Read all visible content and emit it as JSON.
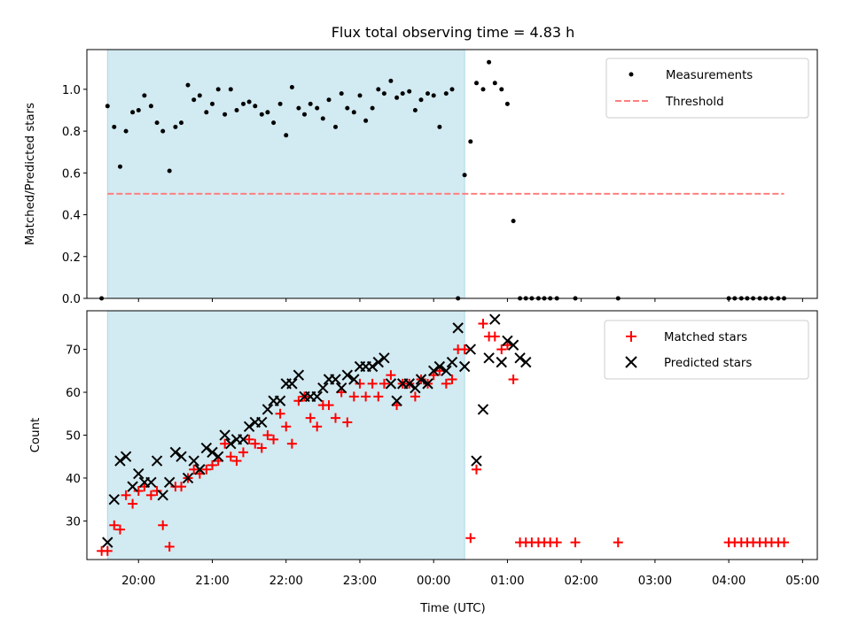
{
  "chart_data": {
    "title": "Flux total observing time = 4.83 h",
    "xlabel": "Time (UTC)",
    "x_ticks": [
      "20:00",
      "21:00",
      "22:00",
      "23:00",
      "00:00",
      "01:00",
      "02:00",
      "03:00",
      "04:00",
      "05:00"
    ],
    "x_tick_hours": [
      20,
      21,
      22,
      23,
      24,
      25,
      26,
      27,
      28,
      29
    ],
    "xlim_hours": [
      19.3,
      29.2
    ],
    "observing_window_hours": [
      19.58,
      24.42
    ],
    "colors": {
      "window": "#add8e6",
      "measurements": "#000000",
      "threshold": "#ff7f7f",
      "matched": "#ff0000",
      "predicted": "#000000"
    },
    "panels": [
      {
        "type": "scatter",
        "ylabel": "Matched/Predicted stars",
        "ylim": [
          0,
          1.19
        ],
        "y_ticks": [
          0.0,
          0.2,
          0.4,
          0.6,
          0.8,
          1.0
        ],
        "y_tick_labels": [
          "0.0",
          "0.2",
          "0.4",
          "0.6",
          "0.8",
          "1.0"
        ],
        "legend_position": "upper right",
        "series": [
          {
            "name": "Measurements",
            "marker": "dot",
            "x": [
              19.5,
              19.58,
              19.67,
              19.75,
              19.83,
              19.92,
              20.0,
              20.08,
              20.17,
              20.25,
              20.33,
              20.42,
              20.5,
              20.58,
              20.67,
              20.75,
              20.83,
              20.92,
              21.0,
              21.08,
              21.17,
              21.25,
              21.33,
              21.42,
              21.5,
              21.58,
              21.67,
              21.75,
              21.83,
              21.92,
              22.0,
              22.08,
              22.17,
              22.25,
              22.33,
              22.42,
              22.5,
              22.58,
              22.67,
              22.75,
              22.83,
              22.92,
              23.0,
              23.08,
              23.17,
              23.25,
              23.33,
              23.42,
              23.5,
              23.58,
              23.67,
              23.75,
              23.83,
              23.92,
              24.0,
              24.08,
              24.17,
              24.25,
              24.33,
              24.42,
              24.5,
              24.58,
              24.67,
              24.75,
              24.83,
              24.92,
              25.0,
              25.08,
              25.17,
              25.25,
              25.33,
              25.42,
              25.5,
              25.58,
              25.67,
              25.92,
              26.5,
              28.0,
              28.08,
              28.17,
              28.25,
              28.33,
              28.42,
              28.5,
              28.58,
              28.67,
              28.75
            ],
            "y": [
              0.0,
              0.92,
              0.82,
              0.63,
              0.8,
              0.89,
              0.9,
              0.97,
              0.92,
              0.84,
              0.8,
              0.61,
              0.82,
              0.84,
              1.02,
              0.95,
              0.97,
              0.89,
              0.93,
              1.0,
              0.88,
              1.0,
              0.9,
              0.93,
              0.94,
              0.92,
              0.88,
              0.89,
              0.84,
              0.93,
              0.78,
              1.01,
              0.91,
              0.88,
              0.93,
              0.91,
              0.86,
              0.95,
              0.82,
              0.98,
              0.91,
              0.89,
              0.97,
              0.85,
              0.91,
              1.0,
              0.98,
              1.04,
              0.96,
              0.98,
              0.99,
              0.9,
              0.95,
              0.98,
              0.97,
              0.82,
              0.98,
              1.0,
              0.0,
              0.59,
              0.75,
              1.03,
              1.0,
              1.13,
              1.03,
              1.0,
              0.93,
              0.37,
              0.0,
              0.0,
              0.0,
              0.0,
              0.0,
              0.0,
              0.0,
              0.0,
              0.0,
              0.0,
              0.0,
              0.0,
              0.0,
              0.0,
              0.0,
              0.0,
              0.0,
              0.0,
              0.0
            ]
          },
          {
            "name": "Threshold",
            "marker": "dashed-line",
            "x": [
              19.58,
              28.75
            ],
            "y": [
              0.5,
              0.5
            ]
          }
        ]
      },
      {
        "type": "scatter",
        "ylabel": "Count",
        "ylim": [
          21,
          79
        ],
        "y_ticks": [
          30,
          40,
          50,
          60,
          70
        ],
        "y_tick_labels": [
          "30",
          "40",
          "50",
          "60",
          "70"
        ],
        "legend_position": "upper right",
        "series": [
          {
            "name": "Matched stars",
            "marker": "plus",
            "x": [
              19.5,
              19.58,
              19.67,
              19.75,
              19.83,
              19.92,
              20.0,
              20.08,
              20.17,
              20.25,
              20.33,
              20.42,
              20.5,
              20.58,
              20.67,
              20.75,
              20.83,
              20.92,
              21.0,
              21.08,
              21.17,
              21.25,
              21.33,
              21.42,
              21.5,
              21.58,
              21.67,
              21.75,
              21.83,
              21.92,
              22.0,
              22.08,
              22.17,
              22.25,
              22.33,
              22.42,
              22.5,
              22.58,
              22.67,
              22.75,
              22.83,
              22.92,
              23.0,
              23.08,
              23.17,
              23.25,
              23.33,
              23.42,
              23.5,
              23.58,
              23.67,
              23.75,
              23.83,
              23.92,
              24.0,
              24.08,
              24.17,
              24.25,
              24.33,
              24.42,
              24.5,
              24.58,
              24.67,
              24.75,
              24.83,
              24.92,
              25.0,
              25.08,
              25.17,
              25.25,
              25.33,
              25.42,
              25.5,
              25.58,
              25.67,
              25.92,
              26.5,
              28.0,
              28.08,
              28.17,
              28.25,
              28.33,
              28.42,
              28.5,
              28.58,
              28.67,
              28.75
            ],
            "y": [
              23,
              23,
              29,
              28,
              36,
              34,
              37,
              38,
              36,
              37,
              29,
              24,
              38,
              38,
              40,
              42,
              41,
              42,
              43,
              44,
              48,
              45,
              44,
              46,
              49,
              48,
              47,
              50,
              49,
              55,
              52,
              48,
              58,
              59,
              54,
              52,
              57,
              57,
              54,
              60,
              53,
              59,
              62,
              59,
              62,
              59,
              62,
              64,
              57,
              62,
              62,
              59,
              63,
              62,
              64,
              65,
              62,
              63,
              70,
              70,
              26,
              42,
              76,
              73,
              73,
              70,
              71,
              63,
              25,
              25,
              25,
              25,
              25,
              25,
              25,
              25,
              25,
              25,
              25,
              25,
              25,
              25,
              25,
              25,
              25,
              25,
              25
            ]
          },
          {
            "name": "Predicted stars",
            "marker": "x",
            "x": [
              19.58,
              19.67,
              19.75,
              19.83,
              19.92,
              20.0,
              20.08,
              20.17,
              20.25,
              20.33,
              20.42,
              20.5,
              20.58,
              20.67,
              20.75,
              20.83,
              20.92,
              21.0,
              21.08,
              21.17,
              21.25,
              21.33,
              21.42,
              21.5,
              21.58,
              21.67,
              21.75,
              21.83,
              21.92,
              22.0,
              22.08,
              22.17,
              22.25,
              22.33,
              22.42,
              22.5,
              22.58,
              22.67,
              22.75,
              22.83,
              22.92,
              23.0,
              23.08,
              23.17,
              23.25,
              23.33,
              23.42,
              23.5,
              23.58,
              23.67,
              23.75,
              23.83,
              23.92,
              24.0,
              24.08,
              24.17,
              24.25,
              24.33,
              24.42,
              24.5,
              24.58,
              24.67,
              24.75,
              24.83,
              24.92,
              25.0,
              25.08,
              25.17,
              25.25
            ],
            "y": [
              25,
              35,
              44,
              45,
              38,
              41,
              39,
              39,
              44,
              36,
              39,
              46,
              45,
              40,
              44,
              42,
              47,
              46,
              45,
              50,
              48,
              49,
              49,
              52,
              53,
              53,
              56,
              58,
              58,
              62,
              62,
              64,
              59,
              59,
              59,
              61,
              63,
              63,
              61,
              64,
              63,
              66,
              66,
              66,
              67,
              68,
              62,
              58,
              62,
              62,
              61,
              63,
              62,
              65,
              66,
              65,
              67,
              75,
              66,
              70,
              44,
              56,
              68,
              77,
              67,
              72,
              71,
              68,
              67
            ]
          }
        ]
      }
    ]
  }
}
